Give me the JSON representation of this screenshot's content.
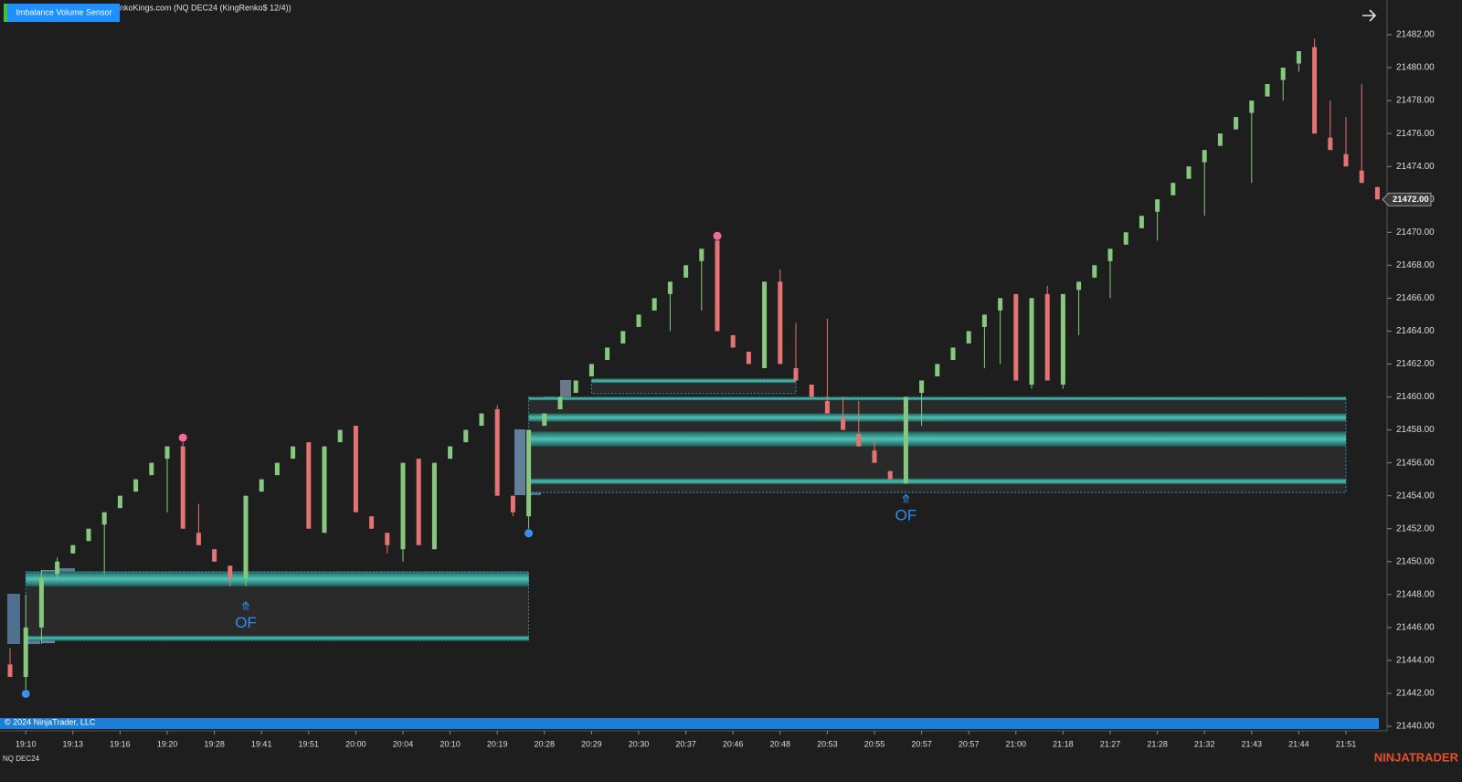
{
  "chart_data": {
    "type": "candlestick",
    "title": "nkoKings.com (NQ DEC24 (KingRenko$ 12/4))",
    "indicator_label": "Imbalance Volume Sensor",
    "copyright": "© 2024 NinjaTrader, LLC",
    "instrument": "NQ DEC24",
    "brand": "NINJATRADER",
    "up_color": "#86c97e",
    "down_color": "#e57373",
    "categories": [
      null,
      "19:10",
      null,
      null,
      "19:13",
      null,
      null,
      "19:16",
      null,
      null,
      "19:20",
      null,
      null,
      "19:28",
      null,
      null,
      "19:41",
      null,
      null,
      "19:51",
      null,
      null,
      "20:00",
      null,
      null,
      "20:04",
      null,
      null,
      "20:10",
      null,
      null,
      "20:19",
      null,
      null,
      "20:28",
      null,
      null,
      "20:29",
      null,
      null,
      "20:30",
      null,
      null,
      "20:37",
      null,
      null,
      "20:46",
      null,
      null,
      "20:48",
      null,
      null,
      "20:53",
      null,
      null,
      "20:55",
      null,
      null,
      "20:57",
      null,
      null,
      "20:57",
      null,
      null,
      "21:00",
      null,
      null,
      "21:18",
      null,
      null,
      "21:27",
      null,
      null,
      "21:28",
      null,
      null,
      "21:32",
      null,
      null,
      "21:43",
      null,
      null,
      "21:44",
      null,
      null,
      "21:51",
      null,
      null
    ],
    "open": [
      21443.75,
      21443,
      21446,
      21449.25,
      21450.5,
      21451.25,
      21452.25,
      21453.25,
      21454.25,
      21455.25,
      21456.25,
      21457,
      21451.75,
      21450.75,
      21449.75,
      21449,
      21454.25,
      21455.25,
      21456.25,
      21457.25,
      21451.75,
      21457.25,
      21458.25,
      21452.75,
      21451.75,
      21450.75,
      21456.25,
      21450.75,
      21456.25,
      21457.25,
      21458.25,
      21459.25,
      21454,
      21452.75,
      21458.25,
      21459.25,
      21460.25,
      21461.25,
      21462.25,
      21463.25,
      21464.25,
      21465.25,
      21466.25,
      21467.25,
      21468.25,
      21469.5,
      21463.75,
      21462.75,
      21461.75,
      21467,
      21461.75,
      21460.75,
      21459.75,
      21458.75,
      21457.75,
      21456.75,
      21455.5,
      21454.75,
      21460.25,
      21461.25,
      21462.25,
      21463.25,
      21464.25,
      21465.25,
      21466.25,
      21460.75,
      21466.25,
      21460.75,
      21466.5,
      21467.25,
      21468.25,
      21469.25,
      21470.25,
      21471.25,
      21472.25,
      21473.25,
      21474.25,
      21475.25,
      21476.25,
      21477.25,
      21478.25,
      21479.25,
      21480.25,
      21481.25,
      21475.75,
      21474.75,
      21473.75,
      21472.75
    ],
    "high": [
      21444.75,
      21448,
      21449.5,
      21450.25,
      21451,
      21452,
      21453,
      21454,
      21455,
      21456,
      21457,
      21457.25,
      21453.5,
      21450.75,
      21449.75,
      21454,
      21455,
      21456,
      21457,
      21457.25,
      21457,
      21458,
      21458.25,
      21452.75,
      21451.75,
      21456,
      21456.25,
      21456,
      21457,
      21458,
      21459,
      21459.5,
      21454,
      21458,
      21459,
      21460,
      21461,
      21462,
      21463,
      21464,
      21465,
      21466,
      21467,
      21468,
      21469,
      21469.5,
      21463.75,
      21462.75,
      21467,
      21467.75,
      21464.5,
      21460.75,
      21464.75,
      21460,
      21459.75,
      21457.5,
      21455.5,
      21460,
      21461,
      21462,
      21463,
      21464,
      21465,
      21466,
      21466.25,
      21466,
      21466.75,
      21466.25,
      21467,
      21468,
      21469,
      21470,
      21471,
      21472,
      21473,
      21474,
      21475,
      21476,
      21477,
      21478,
      21479,
      21480,
      21481,
      21481.75,
      21478,
      21477,
      21479,
      21472.75
    ],
    "low": [
      21443,
      21442.25,
      21445,
      21449,
      21450.5,
      21451.25,
      21449.25,
      21453.25,
      21454.25,
      21455.25,
      21453,
      21452,
      21451,
      21450,
      21448.5,
      21448.5,
      21454.25,
      21455.25,
      21456.25,
      21452,
      21451.75,
      21457.25,
      21453,
      21452,
      21450.5,
      21450,
      21451,
      21450.75,
      21456.25,
      21457.25,
      21458.25,
      21454,
      21452.75,
      21452,
      21458.25,
      21459.25,
      21460.25,
      21461.25,
      21462.25,
      21463.25,
      21464.25,
      21465.25,
      21464,
      21467.25,
      21465.25,
      21464,
      21463,
      21462,
      21461.75,
      21462,
      21461,
      21460,
      21459,
      21458,
      21457,
      21456,
      21455,
      21454.75,
      21458.25,
      21461.25,
      21462.25,
      21463.25,
      21461.75,
      21462,
      21461,
      21460.5,
      21461,
      21460.5,
      21463.75,
      21467.25,
      21466,
      21469.25,
      21470.25,
      21469.5,
      21472.25,
      21473.25,
      21471,
      21475.25,
      21476.25,
      21473,
      21478.25,
      21478,
      21479.75,
      21476,
      21475,
      21474,
      21473,
      21472
    ],
    "close": [
      21443,
      21446,
      21449,
      21450,
      21451,
      21452,
      21453,
      21454,
      21455,
      21456,
      21457,
      21452,
      21451,
      21450,
      21449,
      21454,
      21455,
      21456,
      21457,
      21452,
      21457,
      21458,
      21453,
      21452,
      21451,
      21456,
      21451,
      21456,
      21457,
      21458,
      21459,
      21454,
      21453,
      21458,
      21459,
      21460,
      21461,
      21462,
      21463,
      21464,
      21465,
      21466,
      21467,
      21468,
      21469,
      21464,
      21463,
      21462,
      21467,
      21462,
      21461,
      21460,
      21459,
      21458,
      21457,
      21456,
      21455,
      21460,
      21461,
      21462,
      21463,
      21464,
      21465,
      21466,
      21461,
      21466,
      21461,
      21466.25,
      21467,
      21468,
      21469,
      21470,
      21471,
      21472,
      21473,
      21474,
      21475,
      21476,
      21477,
      21478,
      21479,
      21480,
      21481,
      21476,
      21475,
      21474,
      21473,
      21472
    ],
    "markers": [
      {
        "bar": 1,
        "price": 21442.25,
        "color": "#3b8fe8"
      },
      {
        "bar": 11,
        "price": 21457.25,
        "color": "#f06a9c"
      },
      {
        "bar": 33,
        "price": 21452,
        "color": "#3b8fe8"
      },
      {
        "bar": 45,
        "price": 21469.5,
        "color": "#f06a9c"
      }
    ],
    "annotations": [
      {
        "bar": 15,
        "price": 21446.25,
        "text": "OF",
        "symbol": "⤊",
        "color": "#2f8ef0"
      },
      {
        "bar": 57,
        "price": 21452.75,
        "text": "OF",
        "symbol": "⤊",
        "color": "#2f8ef0"
      }
    ],
    "zones": [
      {
        "start": 1,
        "end": 33,
        "top": 21449.4,
        "bottom": 21445.2,
        "bands": [
          [
            21449.4,
            21448.5
          ],
          [
            21445.5,
            21445.2
          ]
        ]
      },
      {
        "start": 33,
        "end": 85,
        "top": 21460,
        "bottom": 21454.2,
        "bands": [
          [
            21460,
            21459.8
          ],
          [
            21459,
            21458.5
          ],
          [
            21457.9,
            21457
          ],
          [
            21455.05,
            21454.7
          ]
        ]
      },
      {
        "start": 37,
        "end": 50,
        "top": 21461.1,
        "bottom": 21460.2,
        "bands": [
          [
            21461.1,
            21460.85
          ]
        ]
      }
    ],
    "last_price": {
      "value": 21472,
      "label": "21472.00"
    },
    "ylim": [
      21440,
      21482
    ],
    "yticks": [
      {
        "value": 21440,
        "label": "21440.00"
      },
      {
        "value": 21442,
        "label": "21442.00"
      },
      {
        "value": 21444,
        "label": "21444.00"
      },
      {
        "value": 21446,
        "label": "21446.00"
      },
      {
        "value": 21448,
        "label": "21448.00"
      },
      {
        "value": 21450,
        "label": "21450.00"
      },
      {
        "value": 21452,
        "label": "21452.00"
      },
      {
        "value": 21454,
        "label": "21454.00"
      },
      {
        "value": 21456,
        "label": "21456.00"
      },
      {
        "value": 21458,
        "label": "21458.00"
      },
      {
        "value": 21460,
        "label": "21460.00"
      },
      {
        "value": 21462,
        "label": "21462.00"
      },
      {
        "value": 21464,
        "label": "21464.00"
      },
      {
        "value": 21466,
        "label": "21466.00"
      },
      {
        "value": 21468,
        "label": "21468.00"
      },
      {
        "value": 21470,
        "label": "21470.00"
      },
      {
        "value": 21472,
        "label": "21472.00"
      },
      {
        "value": 21474,
        "label": "21474.00"
      },
      {
        "value": 21476,
        "label": "21476.00"
      },
      {
        "value": 21478,
        "label": "21478.00"
      },
      {
        "value": 21480,
        "label": "21480.00"
      },
      {
        "value": 21482,
        "label": "21482.00"
      }
    ],
    "grid": false
  }
}
